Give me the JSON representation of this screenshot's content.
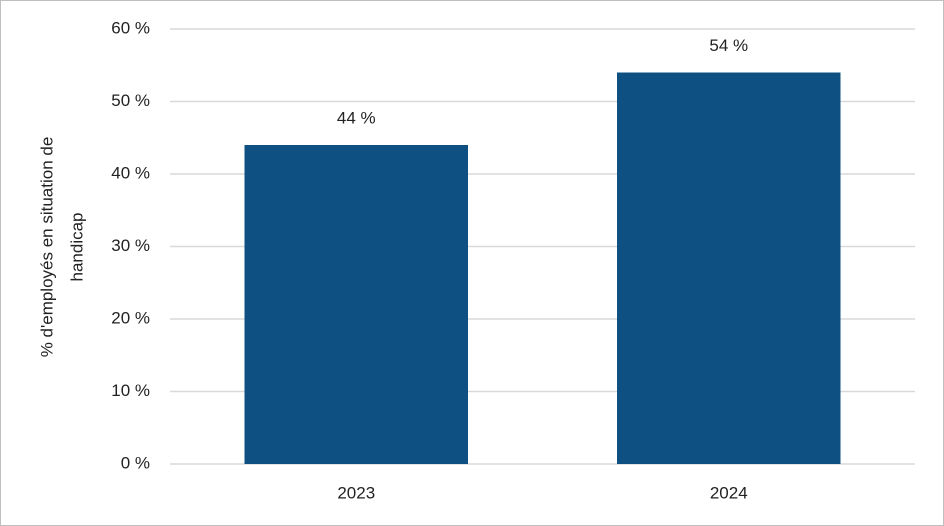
{
  "chart_data": {
    "type": "bar",
    "ylabel": [
      "% d'employés en situation de",
      "handicap"
    ],
    "categories": [
      "2023",
      "2024"
    ],
    "values": [
      44,
      54
    ],
    "value_labels": [
      "44 %",
      "54 %"
    ],
    "color": "#0f5083",
    "ylim": [
      0,
      60
    ],
    "yticks": [
      {
        "value": 0,
        "label": "0 %"
      },
      {
        "value": 10,
        "label": "10 %"
      },
      {
        "value": 20,
        "label": "20 %"
      },
      {
        "value": 30,
        "label": "30 %"
      },
      {
        "value": 40,
        "label": "40 %"
      },
      {
        "value": 50,
        "label": "50 %"
      },
      {
        "value": 60,
        "label": "60 %"
      }
    ],
    "grid": true
  }
}
